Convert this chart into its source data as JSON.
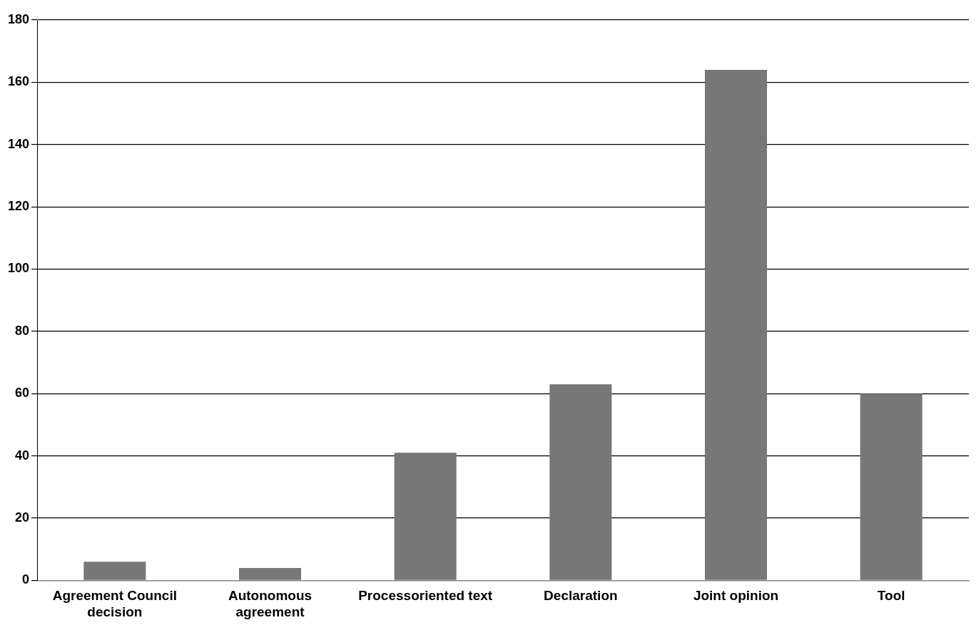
{
  "chart_data": {
    "type": "bar",
    "categories": [
      "Agreement Council decision",
      "Autonomous agreement",
      "Processoriented text",
      "Declaration",
      "Joint opinion",
      "Tool"
    ],
    "values": [
      6,
      4,
      41,
      63,
      164,
      60
    ],
    "color": "#777777",
    "ylim": [
      0,
      180
    ],
    "yticks": [
      0,
      20,
      40,
      60,
      80,
      100,
      120,
      140,
      160,
      180
    ],
    "grid": "y",
    "legend": false
  }
}
